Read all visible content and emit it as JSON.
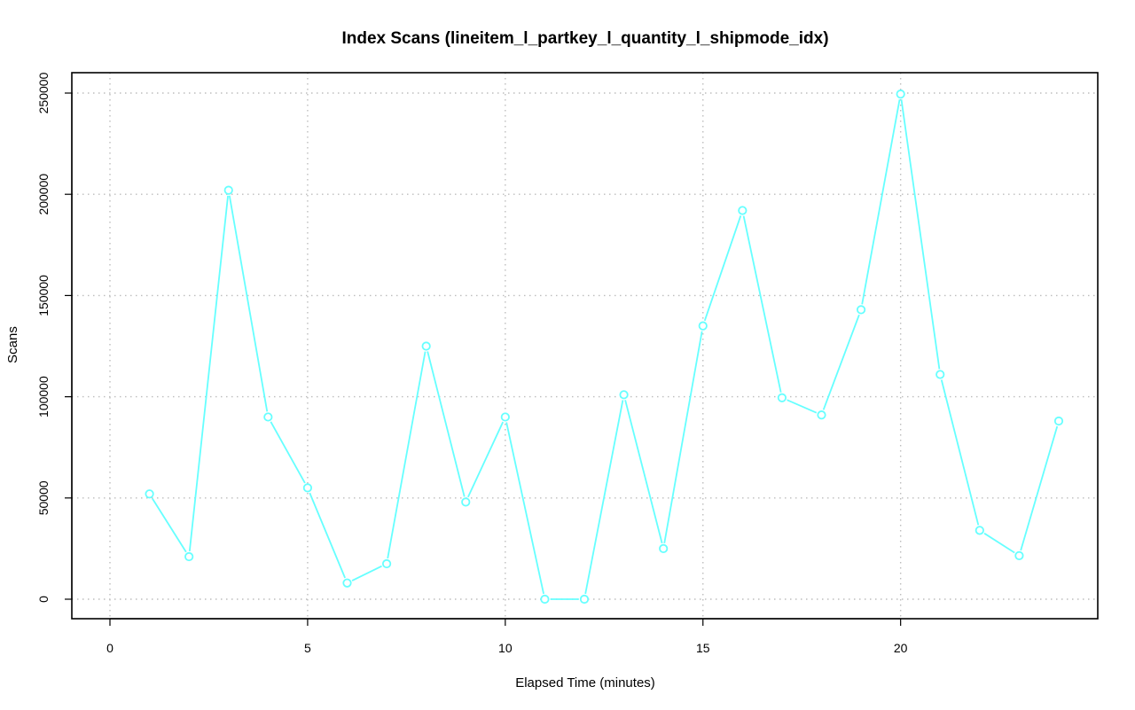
{
  "chart_data": {
    "type": "line",
    "title": "Index Scans (lineitem_l_partkey_l_quantity_l_shipmode_idx)",
    "xlabel": "Elapsed Time (minutes)",
    "ylabel": "Scans",
    "xlim": [
      0,
      24
    ],
    "ylim": [
      0,
      250000
    ],
    "xticks": [
      0,
      5,
      10,
      15,
      20
    ],
    "yticks": [
      0,
      50000,
      100000,
      150000,
      200000,
      250000
    ],
    "grid": true,
    "series": [
      {
        "color": "#66ffff",
        "marker": "open-circle",
        "x": [
          1,
          2,
          3,
          4,
          5,
          6,
          7,
          8,
          9,
          10,
          11,
          12,
          13,
          14,
          15,
          16,
          17,
          18,
          19,
          20,
          21,
          22,
          23,
          24
        ],
        "values": [
          52000,
          21000,
          202000,
          90000,
          55000,
          8000,
          17500,
          125000,
          48000,
          90000,
          0,
          0,
          101000,
          25000,
          135000,
          192000,
          99500,
          91000,
          143000,
          249500,
          111000,
          34000,
          21500,
          88000
        ]
      }
    ]
  }
}
